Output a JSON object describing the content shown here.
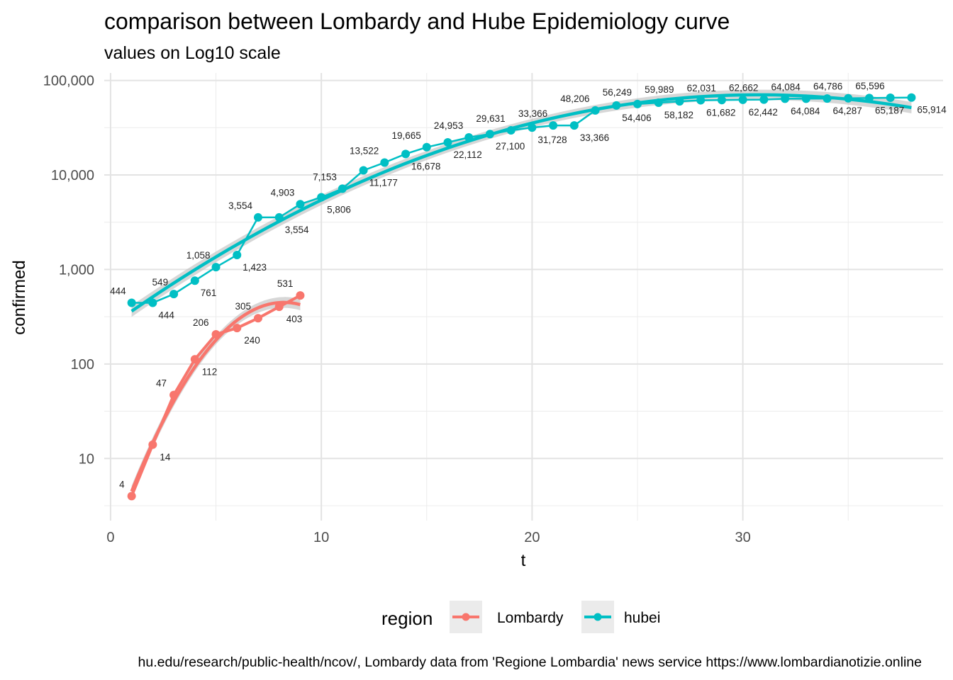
{
  "chart_data": {
    "type": "line",
    "title": "comparison between Lombardy and Hube Epidemiology curve",
    "subtitle": "values on Log10 scale",
    "xlabel": "t",
    "ylabel": "confirmed",
    "y_scale": "log10",
    "xlim": [
      -0.3,
      39.5
    ],
    "ylim": [
      2.2,
      120000
    ],
    "x_ticks": [
      0,
      10,
      20,
      30
    ],
    "x_tick_labels": [
      "0",
      "10",
      "20",
      "30"
    ],
    "y_ticks": [
      10,
      100,
      1000,
      10000,
      100000
    ],
    "y_tick_labels": [
      "10",
      "100",
      "1,000",
      "10,000",
      "100,000"
    ],
    "grid": true,
    "legend_position": "bottom",
    "legend_title": "region",
    "caption": "hu.edu/research/public-health/ncov/, Lombardy data from 'Regione Lombardia' news service https://www.lombardianotizie.online",
    "series": [
      {
        "name": "Lombardy",
        "color": "#F8766D",
        "x": [
          1,
          2,
          3,
          4,
          5,
          6,
          7,
          8,
          9
        ],
        "values": [
          4,
          14,
          47,
          112,
          206,
          240,
          305,
          403,
          531
        ],
        "labels": [
          "4",
          "14",
          "47",
          "112",
          "206",
          "240",
          "305",
          "403",
          "531"
        ]
      },
      {
        "name": "hubei",
        "color": "#00BFC4",
        "x": [
          1,
          2,
          3,
          4,
          5,
          6,
          7,
          8,
          9,
          10,
          11,
          12,
          13,
          14,
          15,
          16,
          17,
          18,
          19,
          20,
          21,
          22,
          23,
          24,
          25,
          26,
          27,
          28,
          29,
          30,
          31,
          32,
          33,
          34,
          35,
          36,
          37,
          38
        ],
        "values": [
          444,
          444,
          549,
          761,
          1058,
          1423,
          3554,
          3554,
          4903,
          5806,
          7153,
          11177,
          13522,
          16678,
          19665,
          22112,
          24953,
          27100,
          29631,
          31728,
          33366,
          33366,
          48206,
          54406,
          56249,
          58182,
          59989,
          61682,
          62031,
          62442,
          62662,
          64084,
          64084,
          64287,
          64786,
          65187,
          65596,
          65914
        ],
        "labels": [
          "444",
          "444",
          "549",
          "761",
          "1,058",
          "1,423",
          "3,554",
          "3,554",
          "4,903",
          "5,806",
          "7,153",
          "11,177",
          "13,522",
          "16,678",
          "19,665",
          "22,112",
          "24,953",
          "27,100",
          "29,631",
          "31,728",
          "33,366",
          "33,366",
          "48,206",
          "54,406",
          "56,249",
          "58,182",
          "59,989",
          "61,682",
          "62,031",
          "62,442",
          "62,662",
          "64,084",
          "64,084",
          "64,287",
          "64,786",
          "65,187",
          "65,596",
          "65,914"
        ]
      }
    ]
  }
}
